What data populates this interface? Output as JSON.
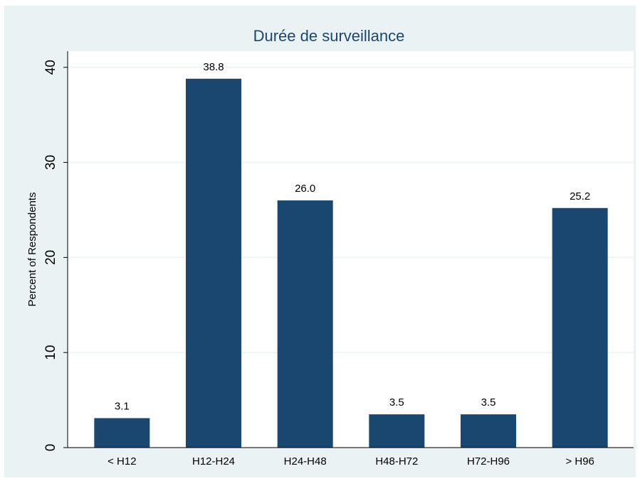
{
  "chart_data": {
    "type": "bar",
    "title": "Durée de surveillance",
    "y_label": "Percent of Respondents",
    "categories": [
      "< H12",
      "H12-H24",
      "H24-H48",
      "H48-H72",
      "H72-H96",
      "> H96"
    ],
    "values": [
      3.1,
      38.8,
      26.0,
      3.5,
      3.5,
      25.2
    ],
    "value_labels": [
      "3.1",
      "38.8",
      "26.0",
      "3.5",
      "3.5",
      "25.2"
    ],
    "color": "#1a476f",
    "ylim": [
      0,
      41.7
    ],
    "yticks": [
      0,
      10,
      20,
      30,
      40
    ],
    "grid": true
  }
}
